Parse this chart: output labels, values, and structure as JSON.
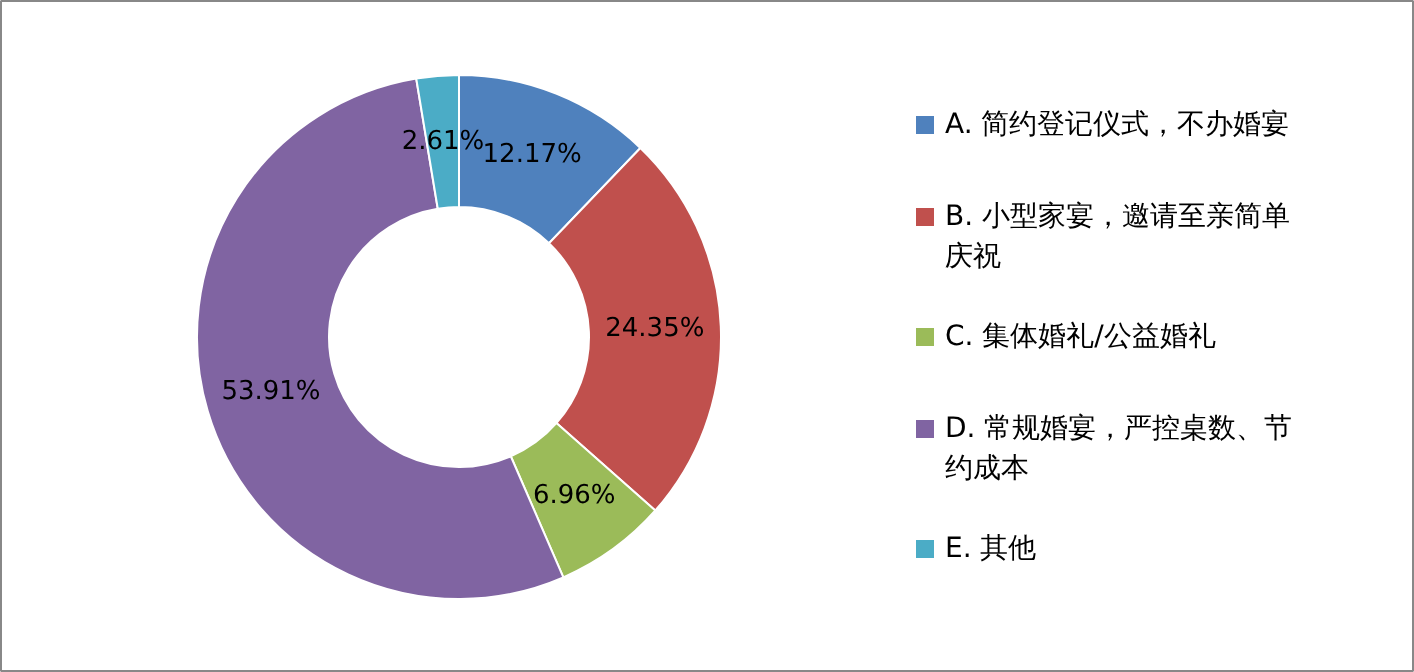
{
  "chart_data": {
    "type": "donut",
    "categories": [
      "A. 简约登记仪式，不办婚宴",
      "B. 小型家宴，邀请至亲简单庆祝",
      "C. 集体婚礼/公益婚礼",
      "D. 常规婚宴，严控桌数、节约成本",
      "E. 其他"
    ],
    "values": [
      12.17,
      24.35,
      6.96,
      53.91,
      2.61
    ],
    "colors": [
      "#4f81bd",
      "#c0504d",
      "#9bbb59",
      "#8064a2",
      "#4bacc6"
    ],
    "value_labels": [
      "12.17%",
      "24.35%",
      "6.96%",
      "53.91%",
      "2.61%"
    ],
    "legend": "right"
  }
}
